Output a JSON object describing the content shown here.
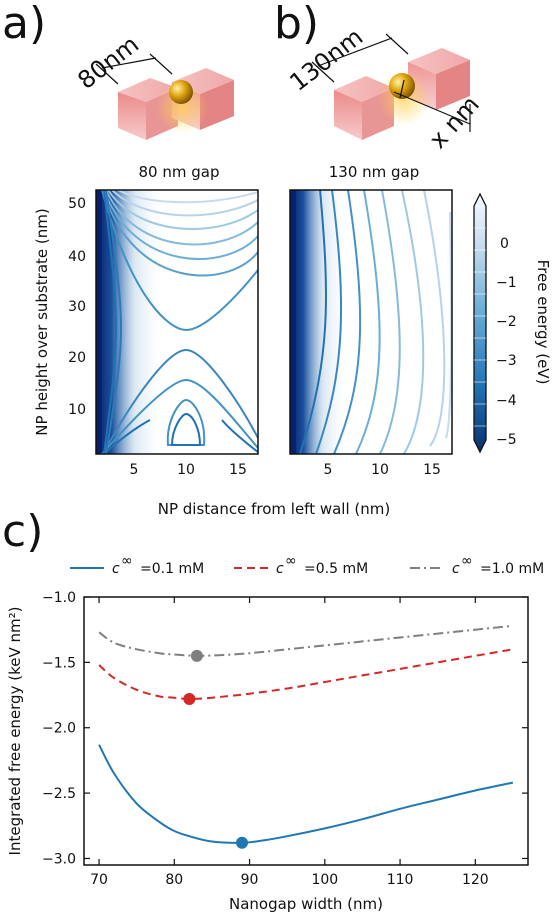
{
  "panels": {
    "a": {
      "letter": "a)",
      "dimension": "80nm",
      "gap_title": "80 nm gap"
    },
    "b": {
      "letter": "b)",
      "dimension": "130nm",
      "side_label": "x nm",
      "gap_title": "130 nm gap"
    },
    "c": {
      "letter": "c)"
    }
  },
  "contour": {
    "ylabel": "NP height over substrate (nm)",
    "xlabel": "NP distance from left wall (nm)",
    "xticks": [
      "5",
      "10",
      "15"
    ],
    "yticks": [
      "10",
      "20",
      "30",
      "40",
      "50"
    ],
    "colorbar_label": "Free energy (eV)",
    "colorbar_ticks": [
      "0",
      "−1",
      "−2",
      "−3",
      "−4",
      "−5"
    ]
  },
  "colors": {
    "series1": "#1f77b4",
    "series2": "#d62728",
    "series3": "#7f7f7f",
    "deep_blue": "#08206b"
  },
  "chart_data": [
    {
      "type": "contour",
      "title": "80 nm gap",
      "xlabel": "NP distance from left wall (nm)",
      "ylabel": "NP height over substrate (nm)",
      "xlim": [
        1,
        16.5
      ],
      "ylim": [
        1.5,
        52.5
      ],
      "colorbar": {
        "label": "Free energy (eV)",
        "range": [
          -5,
          0.5
        ],
        "ticks": [
          0,
          -1,
          -2,
          -3,
          -4,
          -5
        ]
      }
    },
    {
      "type": "contour",
      "title": "130 nm gap",
      "xlabel": "NP distance from left wall (nm)",
      "xlim": [
        1,
        16.5
      ],
      "ylim": [
        1.5,
        52.5
      ]
    },
    {
      "type": "line",
      "xlabel": "Nanogap width (nm)",
      "ylabel": "Integrated free energy (keV nm²)",
      "xlim": [
        68,
        127
      ],
      "ylim": [
        -3.05,
        -1.0
      ],
      "xticks": [
        "70",
        "80",
        "90",
        "100",
        "110",
        "120"
      ],
      "yticks": [
        "−1.0",
        "−1.5",
        "−2.0",
        "−2.5",
        "−3.0"
      ],
      "legend_placement": "top",
      "series": [
        {
          "name": "c∞ = 0.1 mM",
          "legend_prefix": "c",
          "legend_sup": "∞",
          "legend_value": "=0.1 mM",
          "style": "solid",
          "color": "#1f77b4",
          "x": [
            70,
            72,
            75,
            78,
            80,
            82,
            85,
            89,
            92,
            95,
            100,
            105,
            110,
            115,
            120,
            125
          ],
          "y": [
            -2.13,
            -2.35,
            -2.58,
            -2.72,
            -2.79,
            -2.83,
            -2.87,
            -2.88,
            -2.86,
            -2.83,
            -2.77,
            -2.7,
            -2.62,
            -2.55,
            -2.48,
            -2.42
          ],
          "minimum": {
            "x": 89,
            "y": -2.88
          }
        },
        {
          "name": "c∞ = 0.5 mM",
          "legend_prefix": "c",
          "legend_sup": "∞",
          "legend_value": "=0.5 mM",
          "style": "dashed",
          "color": "#d62728",
          "x": [
            70,
            72,
            75,
            78,
            80,
            82,
            85,
            90,
            95,
            100,
            105,
            110,
            115,
            120,
            125
          ],
          "y": [
            -1.52,
            -1.62,
            -1.71,
            -1.76,
            -1.77,
            -1.78,
            -1.77,
            -1.74,
            -1.7,
            -1.65,
            -1.6,
            -1.55,
            -1.5,
            -1.45,
            -1.4
          ],
          "minimum": {
            "x": 82,
            "y": -1.78
          }
        },
        {
          "name": "c∞ = 1.0 mM",
          "legend_prefix": "c",
          "legend_sup": "∞",
          "legend_value": "=1.0 mM",
          "style": "dashdot",
          "color": "#7f7f7f",
          "x": [
            70,
            72,
            75,
            78,
            80,
            83,
            86,
            90,
            95,
            100,
            105,
            110,
            115,
            120,
            125
          ],
          "y": [
            -1.27,
            -1.35,
            -1.4,
            -1.43,
            -1.44,
            -1.45,
            -1.445,
            -1.43,
            -1.4,
            -1.37,
            -1.34,
            -1.31,
            -1.28,
            -1.25,
            -1.22
          ],
          "minimum": {
            "x": 83,
            "y": -1.45
          }
        }
      ]
    }
  ]
}
